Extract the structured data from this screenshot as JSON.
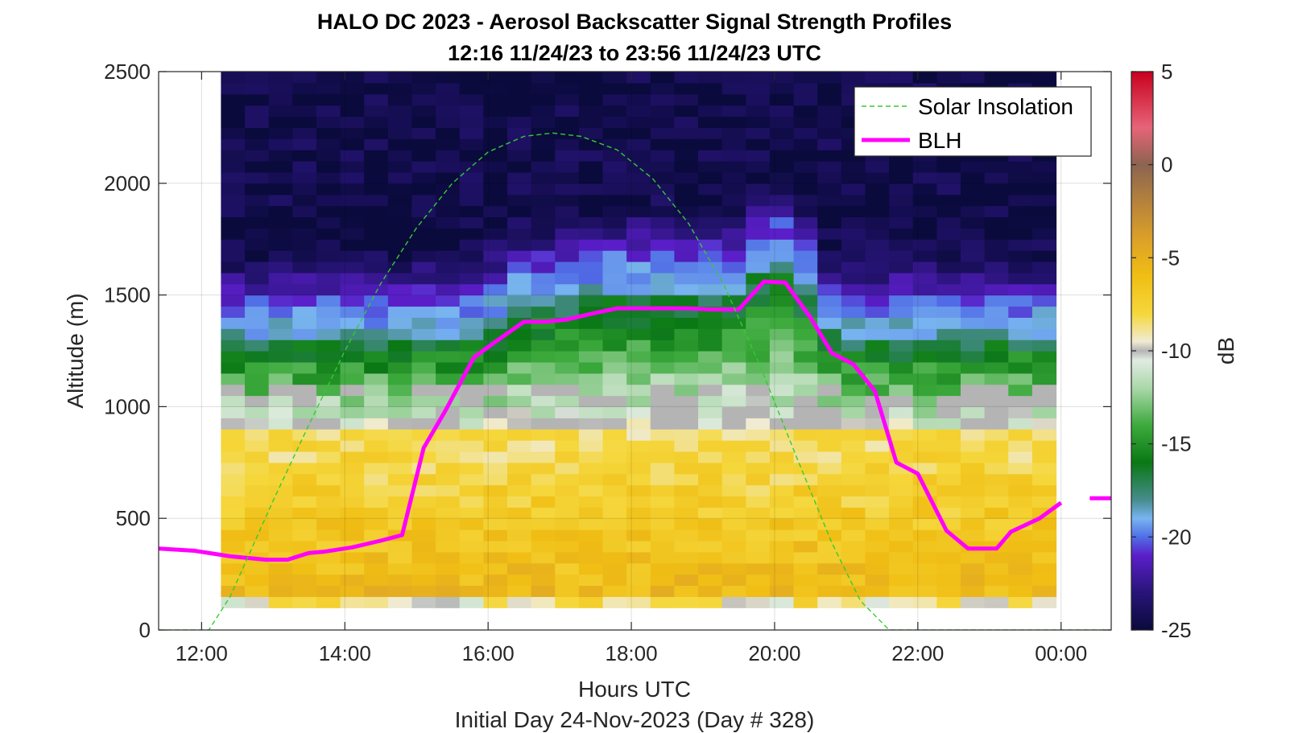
{
  "chart_data": {
    "type": "heatmap",
    "title": "HALO DC 2023 - Aerosol Backscatter Signal Strength Profiles",
    "subtitle": "12:16 11/24/23 to 23:56 11/24/23  UTC",
    "xlabel": "Hours UTC",
    "ylabel": "Altitude (m)",
    "footer": "Initial Day 24-Nov-2023 (Day # 328)",
    "colorbar_label": "dB",
    "x_axis": {
      "range_hours": [
        11.4,
        24.7
      ],
      "tick_hours": [
        12,
        14,
        16,
        18,
        20,
        22,
        24
      ],
      "tick_labels": [
        "12:00",
        "14:00",
        "16:00",
        "18:00",
        "20:00",
        "22:00",
        "00:00"
      ]
    },
    "y_axis": {
      "range": [
        0,
        2500
      ],
      "ticks": [
        0,
        500,
        1000,
        1500,
        2000,
        2500
      ],
      "tick_labels": [
        "0",
        "500",
        "1000",
        "1500",
        "2000",
        "2500"
      ]
    },
    "colorbar": {
      "range": [
        -25,
        5
      ],
      "ticks": [
        -25,
        -20,
        -15,
        -10,
        -5,
        0,
        5
      ],
      "tick_labels": [
        "-25",
        "-20",
        "-15",
        "-10",
        "-5",
        "0",
        "5"
      ]
    },
    "grid": true,
    "legend": {
      "placement": "top-right",
      "entries": [
        {
          "label": "Solar Insolation",
          "style": "dashed",
          "color": "#33cc33"
        },
        {
          "label": "BLH",
          "style": "solid",
          "color": "#ff00ff"
        }
      ]
    },
    "heatmap": {
      "x_start_hours": 12.27,
      "x_end_hours": 23.93,
      "y_bottom": 100,
      "y_top": 2500
    },
    "series": [
      {
        "name": "BLH",
        "color": "#ff00ff",
        "x_hours": [
          11.4,
          11.9,
          12.4,
          12.9,
          13.2,
          13.5,
          13.7,
          14.1,
          14.5,
          14.8,
          15.1,
          15.4,
          15.8,
          16.1,
          16.5,
          16.8,
          17.1,
          17.5,
          17.8,
          18.1,
          18.5,
          18.8,
          19.1,
          19.5,
          19.85,
          20.15,
          20.5,
          20.8,
          21.1,
          21.4,
          21.7,
          22.0,
          22.4,
          22.7,
          23.1,
          23.3,
          23.7,
          24.0
        ],
        "y": [
          365,
          355,
          330,
          315,
          315,
          345,
          350,
          370,
          400,
          425,
          815,
          980,
          1220,
          1290,
          1380,
          1380,
          1390,
          1420,
          1440,
          1440,
          1440,
          1440,
          1435,
          1435,
          1560,
          1555,
          1400,
          1240,
          1190,
          1070,
          750,
          700,
          445,
          365,
          365,
          440,
          500,
          570
        ]
      },
      {
        "name": "Solar Insolation",
        "color": "#33cc33",
        "x_hours": [
          11.4,
          12.1,
          12.4,
          13.0,
          13.5,
          14.0,
          14.5,
          15.0,
          15.5,
          16.0,
          16.5,
          16.9,
          17.3,
          17.8,
          18.3,
          18.8,
          19.3,
          19.8,
          20.3,
          20.8,
          21.2,
          21.6,
          21.9,
          24.7
        ],
        "y": [
          0,
          0,
          150,
          580,
          920,
          1250,
          1550,
          1800,
          2000,
          2140,
          2210,
          2225,
          2210,
          2150,
          2020,
          1820,
          1540,
          1180,
          780,
          390,
          130,
          0,
          0,
          0
        ]
      }
    ]
  }
}
